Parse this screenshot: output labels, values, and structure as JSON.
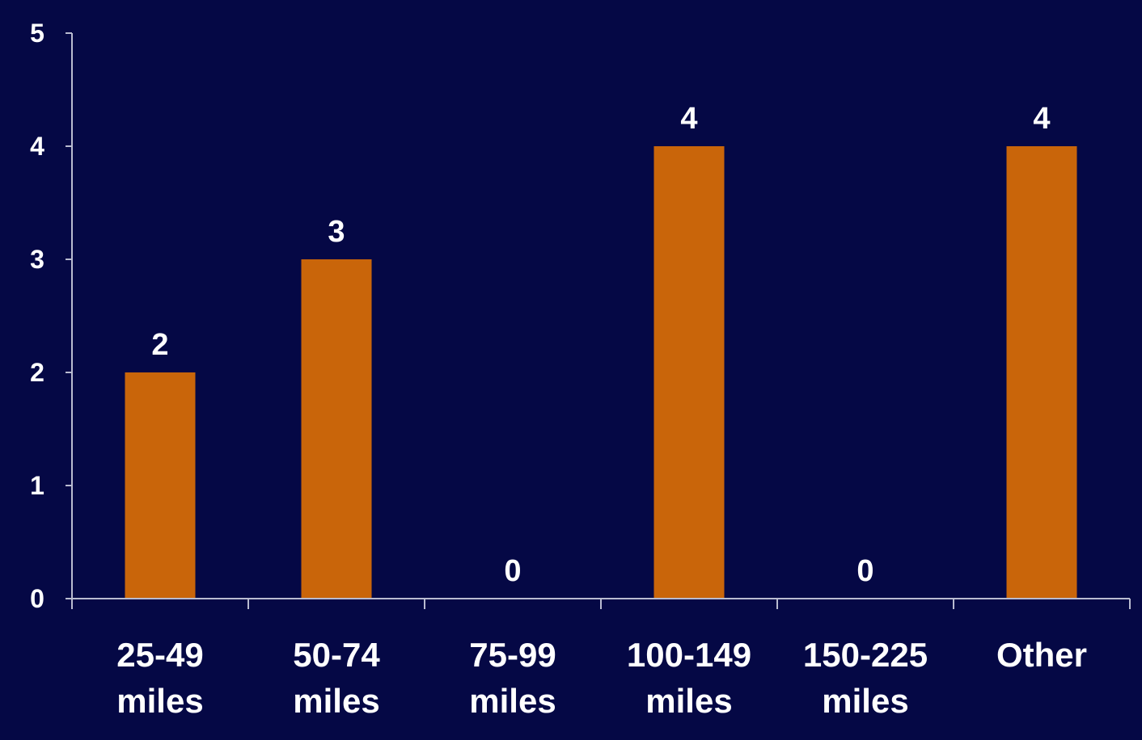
{
  "chart_data": {
    "type": "bar",
    "categories": [
      [
        "25-49",
        "miles"
      ],
      [
        "50-74",
        "miles"
      ],
      [
        "75-99",
        "miles"
      ],
      [
        "100-149",
        "miles"
      ],
      [
        "150-225",
        "miles"
      ],
      [
        "Other"
      ]
    ],
    "values": [
      2,
      3,
      0,
      4,
      0,
      4
    ],
    "ylim": [
      0,
      5
    ],
    "yticks": [
      0,
      1,
      2,
      3,
      4,
      5
    ],
    "data_labels": [
      "2",
      "3",
      "0",
      "4",
      "0",
      "4"
    ],
    "grid": false,
    "legend": "none"
  },
  "colors": {
    "background": "#050845",
    "bar": "#c9650a",
    "axis": "#b9bbd0",
    "text": "#ffffff"
  }
}
